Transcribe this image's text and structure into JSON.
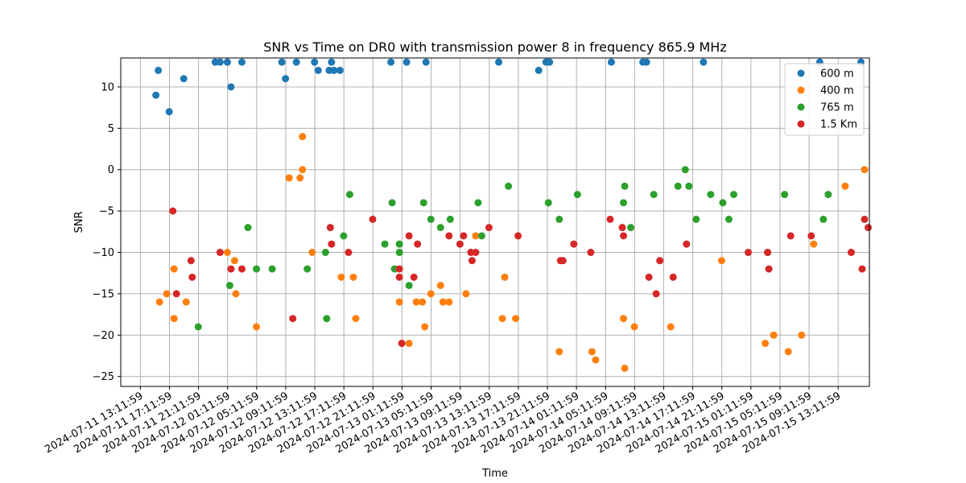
{
  "chart_data": {
    "type": "scatter",
    "title": "SNR vs Time on DR0 with transmission power 8 in frequency 865.9 MHz",
    "xlabel": "Time",
    "ylabel": "SNR",
    "xlim": [
      "2024-07-11 10:30",
      "2024-07-15 17:30"
    ],
    "ylim": [
      -26.2,
      13.5
    ],
    "grid": true,
    "legend_position": "top-right",
    "x_ticks": [
      "2024-07-11 13:11:59",
      "2024-07-11 17:11:59",
      "2024-07-11 21:11:59",
      "2024-07-12 01:11:59",
      "2024-07-12 05:11:59",
      "2024-07-12 09:11:59",
      "2024-07-12 13:11:59",
      "2024-07-12 17:11:59",
      "2024-07-12 21:11:59",
      "2024-07-13 01:11:59",
      "2024-07-13 05:11:59",
      "2024-07-13 09:11:59",
      "2024-07-13 13:11:59",
      "2024-07-13 17:11:59",
      "2024-07-13 21:11:59",
      "2024-07-14 01:11:59",
      "2024-07-14 05:11:59",
      "2024-07-14 09:11:59",
      "2024-07-14 13:11:59",
      "2024-07-14 17:11:59",
      "2024-07-14 21:11:59",
      "2024-07-15 01:11:59",
      "2024-07-15 05:11:59",
      "2024-07-15 09:11:59",
      "2024-07-15 13:11:59"
    ],
    "y_ticks": [
      10,
      5,
      0,
      -5,
      -10,
      -15,
      -20,
      -25
    ],
    "series": [
      {
        "name": "600 m",
        "color": "#1f77b4",
        "points": [
          [
            "2024-07-11 15:20",
            9
          ],
          [
            "2024-07-11 15:40",
            12
          ],
          [
            "2024-07-11 17:10",
            7
          ],
          [
            "2024-07-11 19:10",
            11
          ],
          [
            "2024-07-11 23:30",
            13
          ],
          [
            "2024-07-12 00:10",
            13
          ],
          [
            "2024-07-12 01:10",
            13
          ],
          [
            "2024-07-12 01:40",
            10
          ],
          [
            "2024-07-12 03:10",
            13
          ],
          [
            "2024-07-12 08:40",
            13
          ],
          [
            "2024-07-12 09:10",
            11
          ],
          [
            "2024-07-12 10:40",
            13
          ],
          [
            "2024-07-12 13:10",
            13
          ],
          [
            "2024-07-12 13:40",
            12
          ],
          [
            "2024-07-12 15:10",
            12
          ],
          [
            "2024-07-12 15:30",
            13
          ],
          [
            "2024-07-12 15:50",
            12
          ],
          [
            "2024-07-12 16:40",
            12
          ],
          [
            "2024-07-12 23:40",
            13
          ],
          [
            "2024-07-13 01:50",
            13
          ],
          [
            "2024-07-13 04:30",
            13
          ],
          [
            "2024-07-13 14:30",
            13
          ],
          [
            "2024-07-13 20:00",
            12
          ],
          [
            "2024-07-13 21:00",
            13
          ],
          [
            "2024-07-13 21:30",
            13
          ],
          [
            "2024-07-14 06:00",
            13
          ],
          [
            "2024-07-14 10:20",
            13
          ],
          [
            "2024-07-14 10:50",
            13
          ],
          [
            "2024-07-14 18:40",
            13
          ],
          [
            "2024-07-15 10:40",
            13
          ],
          [
            "2024-07-15 16:20",
            13
          ]
        ]
      },
      {
        "name": "400 m",
        "color": "#ff7f0e",
        "points": [
          [
            "2024-07-11 15:50",
            -16
          ],
          [
            "2024-07-11 16:50",
            -15
          ],
          [
            "2024-07-11 17:50",
            -12
          ],
          [
            "2024-07-11 17:50",
            -18
          ],
          [
            "2024-07-11 19:30",
            -16
          ],
          [
            "2024-07-12 01:10",
            -10
          ],
          [
            "2024-07-12 02:10",
            -11
          ],
          [
            "2024-07-12 02:20",
            -15
          ],
          [
            "2024-07-12 05:10",
            -19
          ],
          [
            "2024-07-12 09:40",
            -1
          ],
          [
            "2024-07-12 11:10",
            -1
          ],
          [
            "2024-07-12 11:30",
            0
          ],
          [
            "2024-07-12 11:30",
            4
          ],
          [
            "2024-07-12 12:50",
            -10
          ],
          [
            "2024-07-12 16:50",
            -13
          ],
          [
            "2024-07-12 18:30",
            -13
          ],
          [
            "2024-07-12 18:50",
            -18
          ],
          [
            "2024-07-13 00:50",
            -16
          ],
          [
            "2024-07-13 02:10",
            -21
          ],
          [
            "2024-07-13 03:10",
            -16
          ],
          [
            "2024-07-13 04:00",
            -16
          ],
          [
            "2024-07-13 04:20",
            -19
          ],
          [
            "2024-07-13 05:10",
            -15
          ],
          [
            "2024-07-13 06:30",
            -14
          ],
          [
            "2024-07-13 06:50",
            -16
          ],
          [
            "2024-07-13 07:40",
            -16
          ],
          [
            "2024-07-13 10:00",
            -15
          ],
          [
            "2024-07-13 11:20",
            -8
          ],
          [
            "2024-07-13 15:00",
            -18
          ],
          [
            "2024-07-13 15:20",
            -13
          ],
          [
            "2024-07-13 16:50",
            -18
          ],
          [
            "2024-07-13 22:50",
            -22
          ],
          [
            "2024-07-14 03:20",
            -22
          ],
          [
            "2024-07-14 03:50",
            -23
          ],
          [
            "2024-07-14 07:40",
            -18
          ],
          [
            "2024-07-14 07:50",
            -24
          ],
          [
            "2024-07-14 09:10",
            -19
          ],
          [
            "2024-07-14 14:10",
            -19
          ],
          [
            "2024-07-14 21:10",
            -11
          ],
          [
            "2024-07-15 03:10",
            -21
          ],
          [
            "2024-07-15 04:20",
            -20
          ],
          [
            "2024-07-15 06:20",
            -22
          ],
          [
            "2024-07-15 08:10",
            -20
          ],
          [
            "2024-07-15 09:50",
            -9
          ],
          [
            "2024-07-15 14:10",
            -2
          ],
          [
            "2024-07-15 16:50",
            0
          ]
        ]
      },
      {
        "name": "765 m",
        "color": "#2ca02c",
        "points": [
          [
            "2024-07-11 21:10",
            -19
          ],
          [
            "2024-07-12 01:30",
            -14
          ],
          [
            "2024-07-12 04:00",
            -7
          ],
          [
            "2024-07-12 05:10",
            -12
          ],
          [
            "2024-07-12 07:20",
            -12
          ],
          [
            "2024-07-12 12:10",
            -12
          ],
          [
            "2024-07-12 14:40",
            -10
          ],
          [
            "2024-07-12 14:50",
            -18
          ],
          [
            "2024-07-12 17:10",
            -8
          ],
          [
            "2024-07-12 18:00",
            -3
          ],
          [
            "2024-07-12 22:50",
            -9
          ],
          [
            "2024-07-12 23:50",
            -4
          ],
          [
            "2024-07-13 00:10",
            -12
          ],
          [
            "2024-07-13 00:50",
            -9
          ],
          [
            "2024-07-13 00:50",
            -10
          ],
          [
            "2024-07-13 02:10",
            -14
          ],
          [
            "2024-07-13 04:10",
            -4
          ],
          [
            "2024-07-13 05:10",
            -6
          ],
          [
            "2024-07-13 06:30",
            -7
          ],
          [
            "2024-07-13 07:50",
            -6
          ],
          [
            "2024-07-13 11:40",
            -4
          ],
          [
            "2024-07-13 12:10",
            -8
          ],
          [
            "2024-07-13 15:50",
            -2
          ],
          [
            "2024-07-13 21:20",
            -4
          ],
          [
            "2024-07-13 22:50",
            -6
          ],
          [
            "2024-07-14 01:20",
            -3
          ],
          [
            "2024-07-14 07:40",
            -4
          ],
          [
            "2024-07-14 07:50",
            -2
          ],
          [
            "2024-07-14 08:40",
            -7
          ],
          [
            "2024-07-14 11:50",
            -3
          ],
          [
            "2024-07-14 15:10",
            -2
          ],
          [
            "2024-07-14 16:10",
            0
          ],
          [
            "2024-07-14 16:40",
            -2
          ],
          [
            "2024-07-14 17:40",
            -6
          ],
          [
            "2024-07-14 19:40",
            -3
          ],
          [
            "2024-07-14 21:20",
            -4
          ],
          [
            "2024-07-14 22:10",
            -6
          ],
          [
            "2024-07-14 22:50",
            -3
          ],
          [
            "2024-07-15 03:30",
            -10
          ],
          [
            "2024-07-15 05:50",
            -3
          ],
          [
            "2024-07-15 11:10",
            -6
          ],
          [
            "2024-07-15 11:50",
            -3
          ]
        ]
      },
      {
        "name": "1.5 Km",
        "color": "#d62728",
        "points": [
          [
            "2024-07-11 17:40",
            -5
          ],
          [
            "2024-07-11 18:10",
            -15
          ],
          [
            "2024-07-11 20:10",
            -11
          ],
          [
            "2024-07-11 20:20",
            -13
          ],
          [
            "2024-07-12 00:10",
            -10
          ],
          [
            "2024-07-12 01:40",
            -12
          ],
          [
            "2024-07-12 03:10",
            -12
          ],
          [
            "2024-07-12 10:10",
            -18
          ],
          [
            "2024-07-12 15:20",
            -7
          ],
          [
            "2024-07-12 15:30",
            -9
          ],
          [
            "2024-07-12 17:50",
            -10
          ],
          [
            "2024-07-12 21:10",
            -6
          ],
          [
            "2024-07-13 00:50",
            -12
          ],
          [
            "2024-07-13 00:50",
            -13
          ],
          [
            "2024-07-13 01:10",
            -21
          ],
          [
            "2024-07-13 02:10",
            -8
          ],
          [
            "2024-07-13 02:50",
            -13
          ],
          [
            "2024-07-13 03:20",
            -9
          ],
          [
            "2024-07-13 07:40",
            -8
          ],
          [
            "2024-07-13 09:10",
            -9
          ],
          [
            "2024-07-13 09:40",
            -8
          ],
          [
            "2024-07-13 10:40",
            -10
          ],
          [
            "2024-07-13 10:50",
            -11
          ],
          [
            "2024-07-13 11:20",
            -10
          ],
          [
            "2024-07-13 13:10",
            -7
          ],
          [
            "2024-07-13 17:10",
            -8
          ],
          [
            "2024-07-13 23:00",
            -11
          ],
          [
            "2024-07-13 23:20",
            -11
          ],
          [
            "2024-07-14 00:50",
            -9
          ],
          [
            "2024-07-14 03:10",
            -10
          ],
          [
            "2024-07-14 05:50",
            -6
          ],
          [
            "2024-07-14 07:30",
            -7
          ],
          [
            "2024-07-14 07:40",
            -8
          ],
          [
            "2024-07-14 11:10",
            -13
          ],
          [
            "2024-07-14 12:10",
            -15
          ],
          [
            "2024-07-14 12:40",
            -11
          ],
          [
            "2024-07-14 14:30",
            -13
          ],
          [
            "2024-07-14 16:20",
            -9
          ],
          [
            "2024-07-15 00:50",
            -10
          ],
          [
            "2024-07-15 03:30",
            -10
          ],
          [
            "2024-07-15 03:40",
            -12
          ],
          [
            "2024-07-15 06:40",
            -8
          ],
          [
            "2024-07-15 09:30",
            -8
          ],
          [
            "2024-07-15 15:00",
            -10
          ],
          [
            "2024-07-15 16:30",
            -12
          ],
          [
            "2024-07-15 16:50",
            -6
          ],
          [
            "2024-07-15 17:20",
            -7
          ]
        ]
      }
    ]
  }
}
